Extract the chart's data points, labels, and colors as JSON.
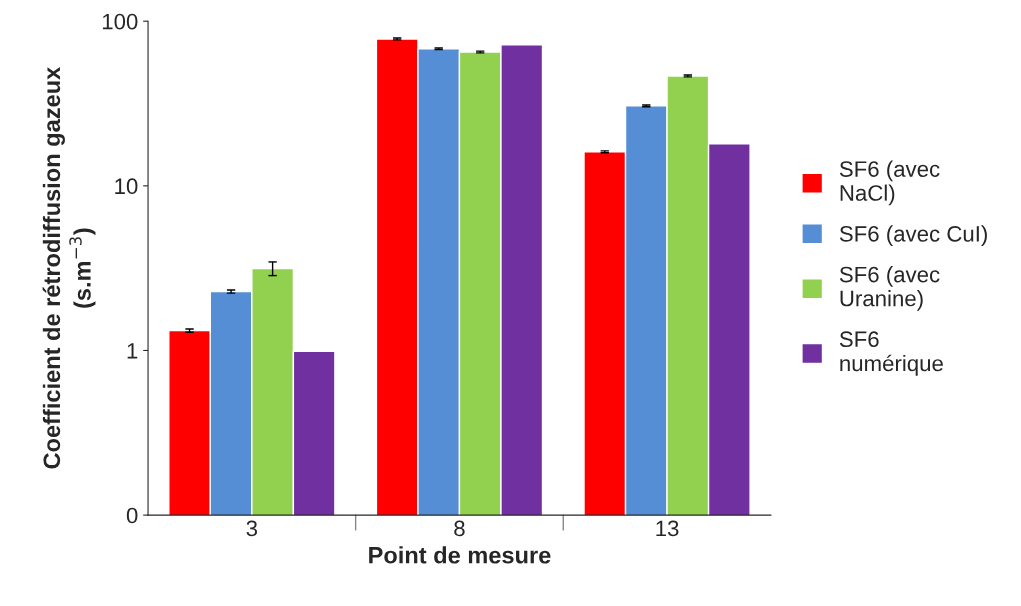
{
  "chart_data": {
    "type": "bar",
    "xlabel": "Point de mesure",
    "ylabel": "Coefficient de rétrodiffusion gazeux\n(s.m$^{−3}$)",
    "categories": [
      "3",
      "8",
      "13"
    ],
    "series": [
      {
        "name": "SF6 (avec\nNaCl)",
        "color": "#ff0000",
        "values": [
          1.32,
          78,
          16.1
        ],
        "errors": [
          0.03,
          1,
          0.2
        ]
      },
      {
        "name": "SF6 (avec CuI)",
        "color": "#558ed5",
        "values": [
          2.28,
          68,
          30.6
        ],
        "errors": [
          0.05,
          0.8,
          0.4
        ]
      },
      {
        "name": "SF6 (avec\nUranine)",
        "color": "#92d050",
        "values": [
          3.15,
          65,
          46.5
        ],
        "errors": [
          0.3,
          0.8,
          0.6
        ]
      },
      {
        "name": "SF6\nnumérique",
        "color": "#7030a0",
        "values": [
          0.99,
          72,
          18.0
        ]
      }
    ],
    "log": "y",
    "ylim": [
      0.1,
      100
    ],
    "yticks": [
      {
        "value": 0.1,
        "label": "0"
      },
      1,
      10,
      100
    ],
    "grid": false,
    "legend": "right"
  }
}
